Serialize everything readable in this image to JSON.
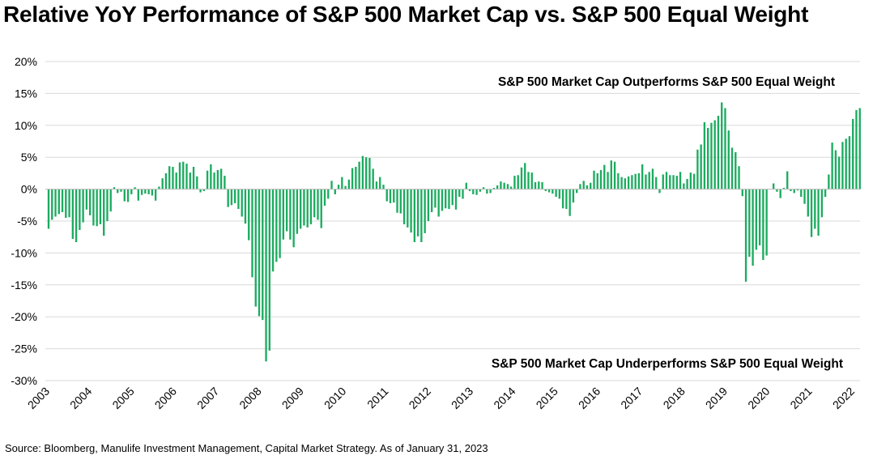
{
  "title": "Relative YoY Performance of S&P 500 Market Cap vs. S&P 500 Equal Weight",
  "source": "Source: Bloomberg, Manulife Investment Management, Capital Market Strategy. As of January 31, 2023",
  "colors": {
    "bar": "#1bab5f",
    "grid": "#d9d9d9"
  },
  "chart_data": {
    "type": "bar",
    "title": "Relative YoY Performance of S&P 500 Market Cap vs. S&P 500 Equal Weight",
    "xlabel": "",
    "ylabel": "",
    "ylim": [
      -30,
      20
    ],
    "y_ticks": [
      20,
      15,
      10,
      5,
      0,
      -5,
      -10,
      -15,
      -20,
      -25,
      -30
    ],
    "y_tick_labels": [
      "20%",
      "15%",
      "10%",
      "5%",
      "0%",
      "-5%",
      "-10%",
      "-15%",
      "-20%",
      "-25%",
      "-30%"
    ],
    "x_tick_labels": [
      "2003",
      "2004",
      "2005",
      "2006",
      "2007",
      "2008",
      "2009",
      "2010",
      "2011",
      "2012",
      "2013",
      "2014",
      "2015",
      "2016",
      "2017",
      "2018",
      "2019",
      "2020",
      "2021",
      "2022"
    ],
    "grid": true,
    "annotations": [
      "S&P 500 Market Cap Outperforms S&P 500 Equal Weight",
      "S&P 500 Market Cap Underperforms S&P 500 Equal Weight"
    ],
    "frequency": "monthly",
    "start": "2003-01",
    "end": "2022-12",
    "values": [
      -6.2,
      -4.8,
      -4.3,
      -3.9,
      -3.6,
      -4.5,
      -4.4,
      -7.8,
      -8.3,
      -6.4,
      -5.2,
      -3.2,
      -4.1,
      -5.7,
      -5.8,
      -5.5,
      -7.3,
      -5.0,
      -3.5,
      0.3,
      -0.6,
      -0.4,
      -1.9,
      -2.0,
      -0.8,
      0.3,
      -1.8,
      -0.9,
      -0.7,
      -0.8,
      -1.0,
      -1.8,
      0.4,
      1.7,
      2.5,
      3.6,
      3.5,
      2.6,
      4.2,
      4.3,
      4.0,
      2.6,
      3.5,
      2.0,
      -0.5,
      -0.3,
      2.9,
      3.9,
      2.6,
      3.0,
      3.2,
      2.1,
      -2.8,
      -2.5,
      -2.2,
      -3.1,
      -4.3,
      -5.4,
      -8.0,
      -13.8,
      -18.4,
      -19.9,
      -20.5,
      -27.0,
      -25.3,
      -12.9,
      -11.4,
      -10.8,
      -7.9,
      -6.6,
      -7.9,
      -9.1,
      -7.0,
      -6.2,
      -5.7,
      -6.0,
      -5.5,
      -4.4,
      -4.8,
      -6.1,
      -2.6,
      -1.5,
      1.3,
      -0.8,
      0.7,
      1.9,
      0.5,
      1.5,
      3.3,
      3.5,
      4.3,
      5.2,
      5.0,
      4.9,
      3.2,
      1.2,
      1.9,
      0.7,
      -1.9,
      -2.2,
      -2.1,
      -3.7,
      -3.8,
      -5.5,
      -6.0,
      -6.8,
      -8.3,
      -7.4,
      -8.3,
      -6.9,
      -5.0,
      -3.6,
      -2.9,
      -4.3,
      -3.4,
      -3.0,
      -3.1,
      -2.5,
      -3.2,
      -1.2,
      -1.5,
      1.0,
      -0.3,
      -0.8,
      -0.9,
      -0.4,
      0.3,
      -0.7,
      -0.6,
      0.2,
      0.6,
      1.2,
      1.0,
      0.8,
      0.4,
      2.1,
      2.2,
      3.4,
      4.1,
      2.7,
      2.6,
      1.1,
      1.2,
      1.1,
      -0.3,
      -0.5,
      -0.7,
      -1.2,
      -1.5,
      -3.0,
      -3.1,
      -4.2,
      -2.1,
      -0.6,
      0.8,
      1.3,
      0.6,
      1.0,
      2.9,
      2.5,
      3.0,
      3.8,
      2.7,
      4.5,
      4.3,
      2.5,
      1.9,
      1.7,
      2.0,
      2.2,
      2.4,
      2.5,
      3.9,
      2.3,
      2.7,
      3.2,
      1.9,
      -0.6,
      2.3,
      2.7,
      2.2,
      2.2,
      2.1,
      2.7,
      0.9,
      1.6,
      2.6,
      2.4,
      6.2,
      7.0,
      10.5,
      9.6,
      10.4,
      10.8,
      11.5,
      13.6,
      12.7,
      9.2,
      6.5,
      5.8,
      3.6,
      -1.1,
      -14.5,
      -10.6,
      -12.0,
      -9.5,
      -8.8,
      -11.1,
      -10.4,
      0.0,
      0.9,
      -0.4,
      -1.4,
      0.2,
      2.8,
      -0.3,
      -0.6,
      -0.2,
      -1.2,
      -2.3,
      -4.3,
      -7.5,
      -6.2,
      -7.3,
      -4.4,
      -1.2,
      2.3,
      7.3,
      6.1,
      5.1,
      7.4,
      7.9,
      8.3,
      11.0,
      12.4,
      12.7
    ]
  }
}
